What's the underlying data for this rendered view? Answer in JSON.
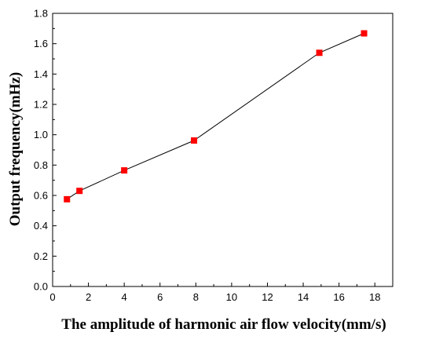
{
  "chart_data": {
    "type": "line",
    "title": "",
    "xlabel": "The amplitude of harmonic air flow velocity(mm/s)",
    "ylabel": "Output frequency(mHz)",
    "xlim": [
      0,
      19
    ],
    "ylim": [
      0,
      1.8
    ],
    "xticks": [
      "0",
      "2",
      "4",
      "6",
      "8",
      "10",
      "12",
      "14",
      "16",
      "18"
    ],
    "yticks": [
      "0.0",
      "0.2",
      "0.4",
      "0.6",
      "0.8",
      "1.0",
      "1.2",
      "1.4",
      "1.6",
      "1.8"
    ],
    "grid": false,
    "series": [
      {
        "x": [
          0.8,
          1.5,
          4.0,
          7.9,
          14.9,
          17.4
        ],
        "y": [
          0.575,
          0.63,
          0.765,
          0.962,
          1.54,
          1.668
        ],
        "line_color": "#000000",
        "marker_color": "#ff0000",
        "marker": "square"
      }
    ]
  }
}
